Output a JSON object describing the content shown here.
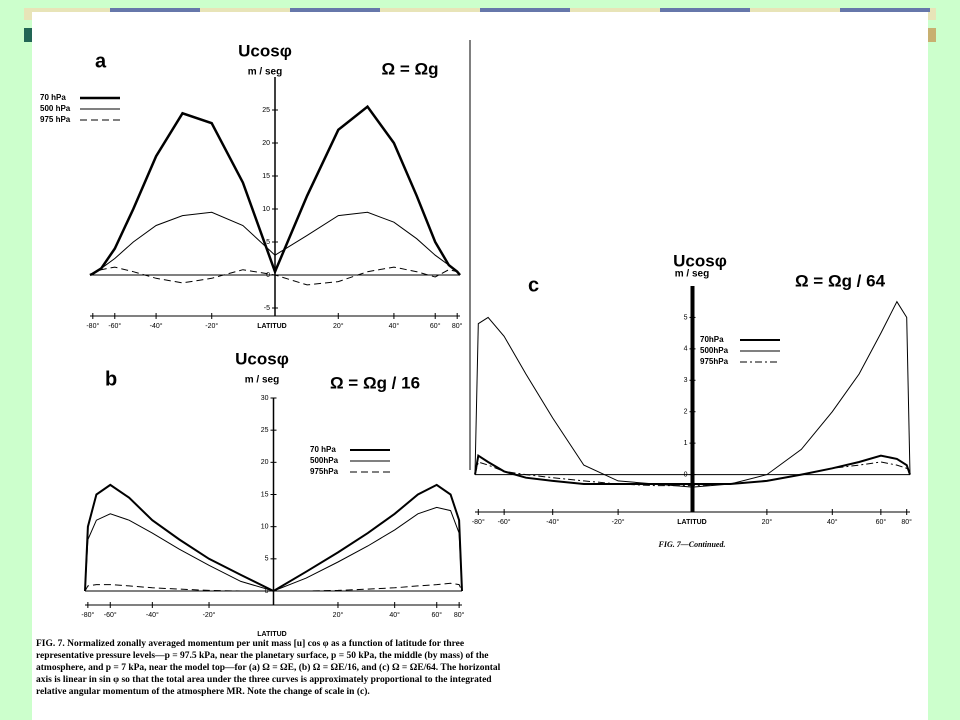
{
  "chart_data": [
    {
      "type": "line",
      "panel": "a",
      "title": "Ucosφ",
      "unit_label": "m / seg",
      "annotation": "Ω = Ωg",
      "xlabel": "LATITUD",
      "xscale": "sine",
      "x": [
        -90,
        -80,
        -70,
        -60,
        -50,
        -40,
        -30,
        -20,
        -10,
        0,
        10,
        20,
        30,
        40,
        50,
        60,
        70,
        80,
        90
      ],
      "xlim": [
        -90,
        90
      ],
      "xticks": [
        {
          "value": -80,
          "label": "-80°"
        },
        {
          "value": -60,
          "label": "-60°"
        },
        {
          "value": -40,
          "label": "-40°"
        },
        {
          "value": -20,
          "label": "-20°"
        },
        {
          "value": 20,
          "label": "20°"
        },
        {
          "value": 40,
          "label": "40°"
        },
        {
          "value": 60,
          "label": "60°"
        },
        {
          "value": 80,
          "label": "80°"
        }
      ],
      "ylim": [
        -5,
        30
      ],
      "yticks": [
        -5,
        0,
        5,
        10,
        15,
        20,
        25
      ],
      "series": [
        {
          "name": "70 hPa",
          "color": "#000000",
          "style": "solid",
          "width": 2.5,
          "values": [
            0,
            0.2,
            1,
            4,
            10,
            18,
            24.5,
            23,
            14,
            0.5,
            12,
            22,
            25.5,
            20,
            12,
            5,
            1.5,
            0.5,
            0
          ]
        },
        {
          "name": "500 hPa",
          "color": "#000000",
          "style": "solid",
          "width": 1,
          "values": [
            0,
            0.2,
            1,
            2.5,
            5,
            7.5,
            9,
            9.5,
            7.5,
            3,
            6,
            9,
            9.5,
            8,
            5.5,
            3,
            1.5,
            0.5,
            0
          ]
        },
        {
          "name": "975 hPa",
          "color": "#000000",
          "style": "dashed",
          "width": 1,
          "values": [
            0,
            0.3,
            0.8,
            1.2,
            0.5,
            -0.5,
            -1.2,
            -0.5,
            0.8,
            0,
            -1.5,
            -1,
            0.5,
            1.2,
            0.5,
            -0.3,
            0.8,
            0.5,
            0
          ]
        }
      ]
    },
    {
      "type": "line",
      "panel": "b",
      "title": "Ucosφ",
      "unit_label": "m / seg",
      "annotation": "Ω = Ωg / 16",
      "xlabel": "LATITUD",
      "xscale": "sine",
      "x": [
        -90,
        -80,
        -70,
        -60,
        -50,
        -40,
        -30,
        -20,
        -10,
        0,
        10,
        20,
        30,
        40,
        50,
        60,
        70,
        80,
        90
      ],
      "xlim": [
        -90,
        90
      ],
      "xticks": [
        {
          "value": -80,
          "label": "-80°"
        },
        {
          "value": -60,
          "label": "-60°"
        },
        {
          "value": -40,
          "label": "-40°"
        },
        {
          "value": -20,
          "label": "-20°"
        },
        {
          "value": 20,
          "label": "20°"
        },
        {
          "value": 40,
          "label": "40°"
        },
        {
          "value": 60,
          "label": "60°"
        },
        {
          "value": 80,
          "label": "80°"
        }
      ],
      "ylim": [
        0,
        30
      ],
      "yticks": [
        0,
        5,
        10,
        15,
        20,
        25,
        30
      ],
      "series": [
        {
          "name": "70 hPa",
          "color": "#000000",
          "style": "solid",
          "width": 2,
          "values": [
            0,
            10,
            15,
            16.5,
            14.5,
            11,
            8,
            5,
            2.5,
            0,
            3,
            6,
            9,
            12,
            15,
            16.5,
            15,
            11,
            0
          ]
        },
        {
          "name": "500hPa",
          "color": "#000000",
          "style": "solid",
          "width": 1,
          "values": [
            0,
            8,
            11,
            12,
            11,
            9,
            6.5,
            4,
            1.5,
            0,
            2,
            4.5,
            7,
            9.5,
            12,
            13,
            12.5,
            9,
            0
          ]
        },
        {
          "name": "975hPa",
          "color": "#000000",
          "style": "dashed",
          "width": 1,
          "values": [
            0,
            0.8,
            1,
            1,
            0.8,
            0.5,
            0.3,
            0.1,
            0,
            0,
            0,
            0.1,
            0.3,
            0.5,
            0.8,
            1,
            1.2,
            1,
            0
          ]
        }
      ]
    },
    {
      "type": "line",
      "panel": "c",
      "title": "Ucosφ",
      "unit_label": "m / seg",
      "annotation": "Ω = Ωg / 64",
      "xlabel": "LATITUD",
      "xscale": "sine",
      "x": [
        -90,
        -80,
        -70,
        -60,
        -50,
        -40,
        -30,
        -20,
        -10,
        0,
        10,
        20,
        30,
        40,
        50,
        60,
        70,
        80,
        90
      ],
      "xlim": [
        -90,
        90
      ],
      "xticks": [
        {
          "value": -80,
          "label": "-80°"
        },
        {
          "value": -60,
          "label": "-60°"
        },
        {
          "value": -40,
          "label": "-40°"
        },
        {
          "value": -20,
          "label": "-20°"
        },
        {
          "value": 20,
          "label": "20°"
        },
        {
          "value": 40,
          "label": "40°"
        },
        {
          "value": 60,
          "label": "60°"
        },
        {
          "value": 80,
          "label": "80°"
        }
      ],
      "ylim": [
        -1,
        6
      ],
      "yticks": [
        0,
        1,
        2,
        3,
        4,
        5
      ],
      "series": [
        {
          "name": "70hPa",
          "color": "#000000",
          "style": "solid",
          "width": 2,
          "values": [
            0,
            0.6,
            0.4,
            0.1,
            -0.1,
            -0.2,
            -0.3,
            -0.3,
            -0.3,
            -0.3,
            -0.3,
            -0.2,
            0,
            0.2,
            0.4,
            0.6,
            0.5,
            0.3,
            0
          ]
        },
        {
          "name": "500hPa",
          "color": "#000000",
          "style": "solid",
          "width": 1,
          "values": [
            0,
            4.8,
            5,
            4.4,
            3.2,
            1.8,
            0.3,
            -0.2,
            -0.3,
            -0.4,
            -0.3,
            0,
            0.8,
            2,
            3.2,
            4.5,
            5.5,
            5,
            0
          ]
        },
        {
          "name": "975hPa",
          "color": "#000000",
          "style": "dashdot",
          "width": 1,
          "values": [
            0,
            0.4,
            0.3,
            0.1,
            0,
            -0.1,
            -0.2,
            -0.3,
            -0.35,
            -0.35,
            -0.3,
            -0.2,
            0,
            0.2,
            0.3,
            0.4,
            0.3,
            0.2,
            0
          ]
        }
      ]
    }
  ],
  "caption": "FIG. 7. Normalized zonally averaged momentum per unit mass [u] cos φ as a function of latitude for three representative pressure levels—p = 97.5 kPa, near the planetary surface, p = 50 kPa, the middle (by mass) of the atmosphere, and p = 7 kPa, near the model top—for (a) Ω = ΩE, (b) Ω = ΩE/16, and (c) Ω = ΩE/64. The horizontal axis is linear in sin φ so that the total area under the three curves is approximately proportional to the integrated relative angular momentum of the atmosphere MR. Note the change of scale in (c).",
  "continued": "FIG. 7—Continued."
}
